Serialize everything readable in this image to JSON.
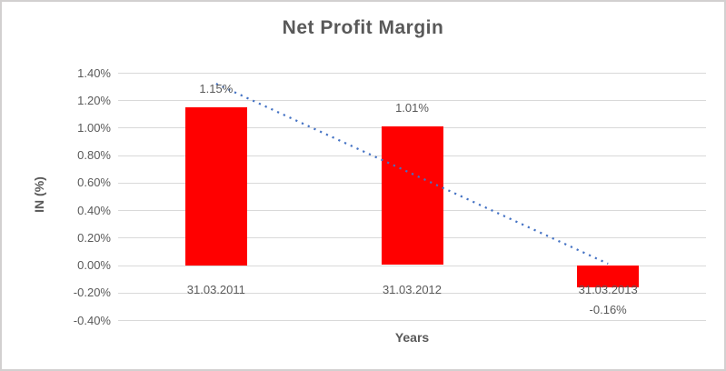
{
  "chart_data": {
    "type": "bar",
    "title": "Net Profit Margin",
    "xlabel": "Years",
    "ylabel": "IN (%)",
    "categories": [
      "31.03.2011",
      "31.03.2012",
      "31.03.2013"
    ],
    "values": [
      1.15,
      1.01,
      -0.16
    ],
    "data_labels": [
      "1.15%",
      "1.01%",
      "-0.16%"
    ],
    "ylim": [
      -0.4,
      1.4
    ],
    "ytick_values": [
      1.4,
      1.2,
      1.0,
      0.8,
      0.6,
      0.4,
      0.2,
      0.0,
      -0.2,
      -0.4
    ],
    "ytick_labels": [
      "1.40%",
      "1.20%",
      "1.00%",
      "0.80%",
      "0.60%",
      "0.40%",
      "0.20%",
      "0.00%",
      "-0.20%",
      "-0.40%"
    ],
    "grid": true,
    "legend": "none",
    "trendline": {
      "type": "linear",
      "style": "dotted",
      "start_value": 1.32,
      "end_value": 0.01
    },
    "colors": {
      "bar": "#ff0000",
      "trendline": "#4472c4",
      "gridline": "#d9d9d9",
      "tick_text": "#595959",
      "title_text": "#595959",
      "frame_border": "#d2d0d0"
    }
  }
}
